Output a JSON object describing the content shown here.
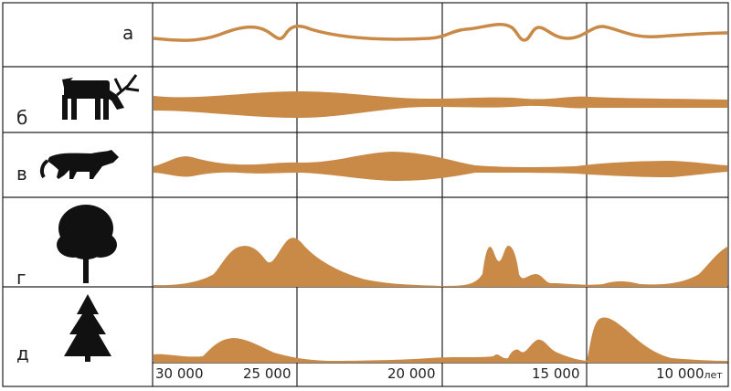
{
  "colors": {
    "fill": "#C98A48",
    "line": "#222222",
    "silhouette": "#111111",
    "background": "#FFFFFF"
  },
  "rows": [
    {
      "letter": "а",
      "icon": "none"
    },
    {
      "letter": "б",
      "icon": "reindeer-icon"
    },
    {
      "letter": "в",
      "icon": "wolf-icon"
    },
    {
      "letter": "г",
      "icon": "deciduous-tree-icon"
    },
    {
      "letter": "д",
      "icon": "fir-tree-icon"
    }
  ],
  "axis": {
    "ticks": [
      {
        "label": "30 000"
      },
      {
        "label": "25 000"
      },
      {
        "label": "20 000"
      },
      {
        "label": "15 000"
      },
      {
        "label": "10 000"
      }
    ],
    "unit": "лет"
  }
}
